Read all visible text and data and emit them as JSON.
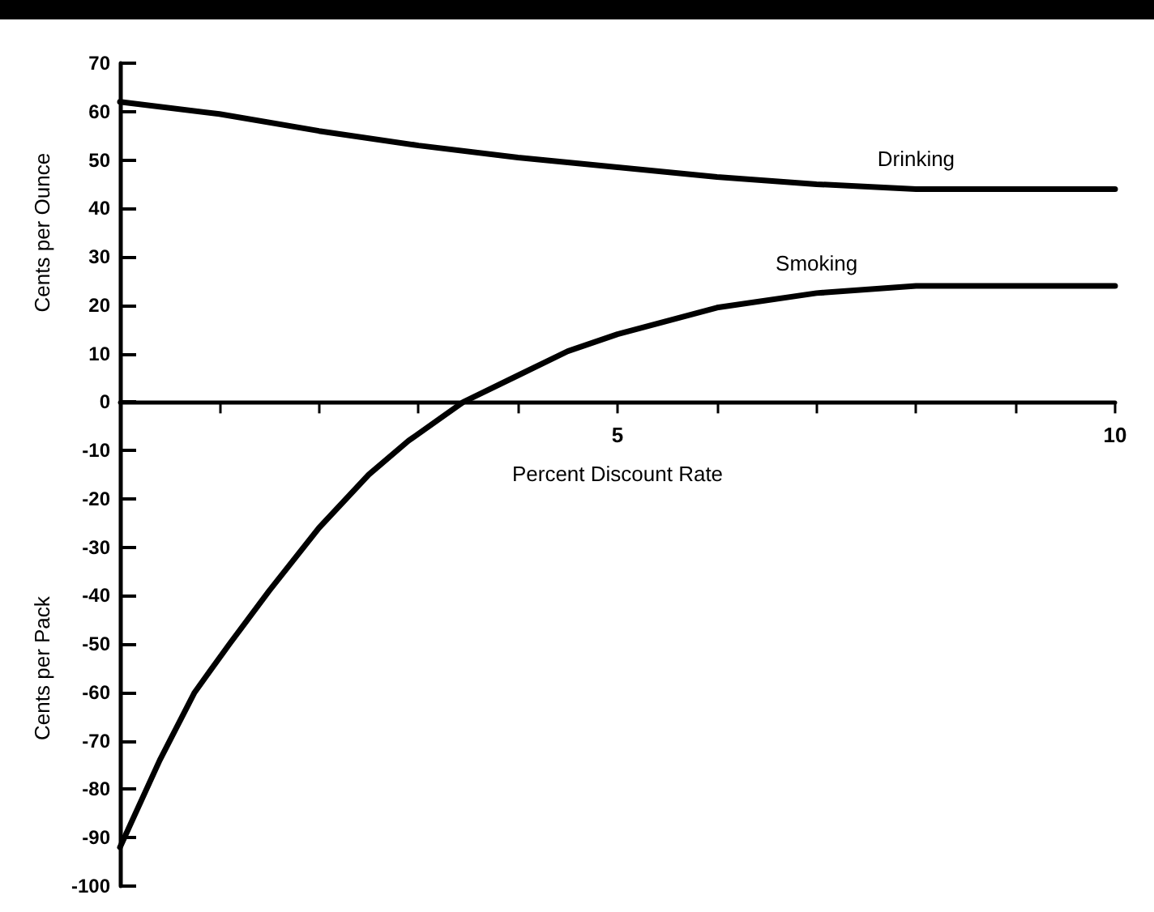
{
  "chart_data": {
    "type": "line",
    "xlabel": "Percent Discount Rate",
    "ylabel": "Cents per Ounce",
    "annotations": [
      "Cents per Pack"
    ],
    "xlim": [
      0,
      10
    ],
    "xticks": [
      {
        "value": 1,
        "label": null
      },
      {
        "value": 2,
        "label": null
      },
      {
        "value": 3,
        "label": null
      },
      {
        "value": 4,
        "label": null
      },
      5,
      {
        "value": 6,
        "label": null
      },
      {
        "value": 7,
        "label": null
      },
      {
        "value": 8,
        "label": null
      },
      {
        "value": 9,
        "label": null
      },
      10
    ],
    "ylim": [
      -100,
      70
    ],
    "yticks": [
      -100,
      -90,
      -80,
      -70,
      -60,
      -50,
      -40,
      -30,
      -20,
      -10,
      0,
      10,
      20,
      30,
      40,
      50,
      60,
      70
    ],
    "grid": false,
    "legend": false,
    "marker": "none",
    "line_style": "solid",
    "series": [
      {
        "name": "Drinking",
        "color": "#000000",
        "x": [
          0,
          1,
          2,
          3,
          4,
          5,
          6,
          7,
          8,
          9,
          10
        ],
        "values": [
          62,
          59.5,
          56,
          53,
          50.5,
          48.5,
          46.5,
          45,
          44,
          44,
          44
        ]
      },
      {
        "name": "Smoking",
        "color": "#000000",
        "x": [
          0,
          0.4,
          0.75,
          1.1,
          1.5,
          2,
          2.5,
          2.9,
          3.45,
          4,
          4.5,
          5,
          6,
          7,
          8,
          9,
          10
        ],
        "values": [
          -92,
          -74,
          -60,
          -50,
          -39,
          -26,
          -15,
          -8,
          0,
          5.5,
          10.5,
          14,
          19.5,
          22.5,
          24,
          24,
          24
        ]
      }
    ]
  }
}
